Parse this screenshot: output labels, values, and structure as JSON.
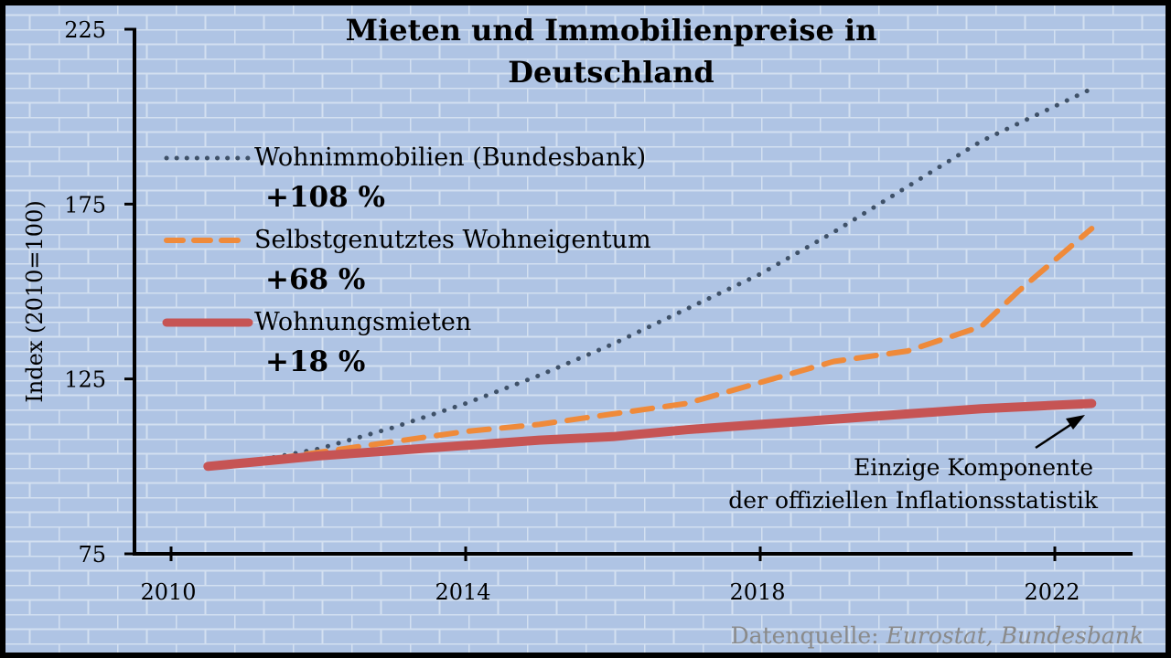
{
  "chart_data": {
    "type": "line",
    "title": "Mieten und Immobilienpreise in Deutschland",
    "title_lines": [
      "Mieten und Immobilienpreise in",
      "Deutschland"
    ],
    "ylabel": "Index (2010=100)",
    "xlabel": "",
    "xlim": [
      2010,
      2022.5
    ],
    "ylim": [
      75,
      225
    ],
    "x_ticks": [
      2010,
      2014,
      2018,
      2022
    ],
    "y_ticks": [
      75,
      125,
      175,
      225
    ],
    "series": [
      {
        "name": "Wohnimmobilien (Bundesbank)",
        "change_label": "+108 %",
        "style": "dotted",
        "color": "#3f5168",
        "x": [
          2010.5,
          2011,
          2012,
          2013,
          2014,
          2015,
          2016,
          2017,
          2018,
          2019,
          2020,
          2021,
          2022.5
        ],
        "y": [
          100,
          101,
          105,
          111,
          118,
          126,
          135,
          145,
          155,
          167,
          180,
          193,
          208
        ]
      },
      {
        "name": "Selbstgenutztes Wohneigentum",
        "change_label": "+68 %",
        "style": "dashed",
        "color": "#ef8a3a",
        "x": [
          2010.5,
          2011,
          2012,
          2013,
          2014,
          2015,
          2016,
          2017,
          2018,
          2019,
          2020,
          2021,
          2021.5,
          2022.5
        ],
        "y": [
          100,
          101,
          104,
          107,
          110,
          112,
          115,
          118,
          124,
          130,
          133,
          140,
          150,
          168
        ]
      },
      {
        "name": "Wohnungsmieten",
        "change_label": "+18 %",
        "style": "solid",
        "color": "#c65454",
        "x": [
          2010.5,
          2011,
          2012,
          2013,
          2014,
          2015,
          2016,
          2017,
          2018,
          2019,
          2020,
          2021,
          2022.5
        ],
        "y": [
          100,
          101,
          103,
          104.5,
          106,
          107.5,
          108.5,
          110.5,
          112,
          113.5,
          115,
          116.5,
          118
        ]
      }
    ],
    "legend_position": "top-left",
    "annotation": [
      "Einzige Komponente",
      "der offiziellen Inflationsstatistik"
    ],
    "annotation_target": {
      "x": 2022.2,
      "y": 113
    },
    "source_label": "Datenquelle: ",
    "source_names": "Eurostat, Bundesbank",
    "grid": false
  },
  "colors": {
    "background": "#afc4e4",
    "brick_mortar": "#d3e0f1",
    "axis": "#000000",
    "source_text": "#8a8a8a"
  }
}
